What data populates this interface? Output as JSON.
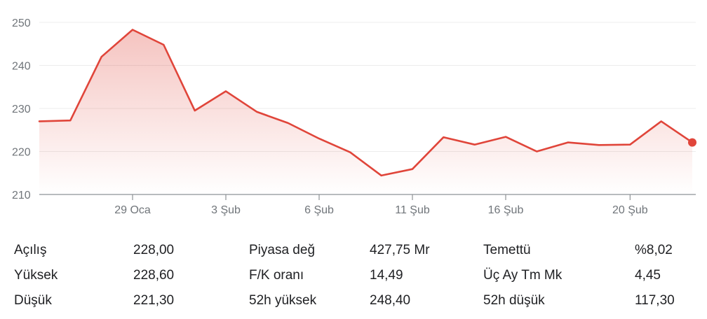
{
  "chart_data": {
    "type": "area",
    "title": "",
    "xlabel": "",
    "ylabel": "",
    "ylim": [
      210,
      250
    ],
    "y_ticks": [
      "250",
      "240",
      "230",
      "220",
      "210"
    ],
    "y_tick_values": [
      250,
      240,
      230,
      220,
      210
    ],
    "x_tick_labels": [
      "29 Oca",
      "3 Şub",
      "6 Şub",
      "11 Şub",
      "16 Şub",
      "20 Şub"
    ],
    "x_tick_positions": [
      3,
      6,
      9,
      12,
      15,
      19
    ],
    "grid": true,
    "line_color": "#e0453a",
    "series": [
      {
        "values": [
          227.0,
          227.2,
          242.0,
          248.3,
          244.8,
          229.5,
          234.0,
          229.2,
          226.6,
          223.0,
          219.8,
          214.4,
          215.9,
          223.3,
          221.6,
          223.4,
          220.0,
          222.1,
          221.5,
          221.6,
          227.0,
          222.1
        ]
      }
    ]
  },
  "stats": [
    {
      "label": "Açılış",
      "value": "228,00"
    },
    {
      "label": "Yüksek",
      "value": "228,60"
    },
    {
      "label": "Düşük",
      "value": "221,30"
    },
    {
      "label": "Piyasa değ",
      "value": "427,75 Mr"
    },
    {
      "label": "F/K oranı",
      "value": "14,49"
    },
    {
      "label": "52h yüksek",
      "value": "248,40"
    },
    {
      "label": "Temettü",
      "value": "%8,02"
    },
    {
      "label": "Üç Ay Tm Mk",
      "value": "4,45"
    },
    {
      "label": "52h düşük",
      "value": "117,30"
    }
  ]
}
